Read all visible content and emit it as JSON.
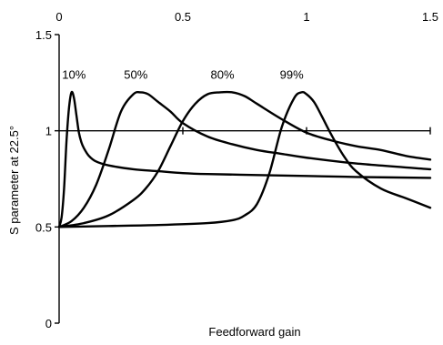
{
  "chart_data": {
    "type": "line",
    "title": "",
    "xlabel": "Feedforward gain",
    "ylabel": "S parameter at 22.5°",
    "xlim": [
      0,
      1.5
    ],
    "ylim": [
      0,
      1.5
    ],
    "x_ticks": [
      {
        "value": 0,
        "label": "0"
      },
      {
        "value": 0.5,
        "label": "0.5"
      },
      {
        "value": 1,
        "label": "1"
      },
      {
        "value": 1.5,
        "label": "1.5"
      }
    ],
    "y_ticks": [
      {
        "value": 0,
        "label": "0"
      },
      {
        "value": 0.5,
        "label": "0.5"
      },
      {
        "value": 1,
        "label": "1"
      },
      {
        "value": 1.5,
        "label": "1.5"
      }
    ],
    "x_axis_position": "top",
    "grid": false,
    "legend": "none",
    "reference_line": {
      "y": 1.0
    },
    "series": [
      {
        "name": "10%",
        "x": [
          0,
          0.01,
          0.02,
          0.03,
          0.04,
          0.05,
          0.06,
          0.07,
          0.08,
          0.09,
          0.1,
          0.12,
          0.15,
          0.2,
          0.3,
          0.4,
          0.5,
          0.6,
          0.8,
          1.0,
          1.2,
          1.5
        ],
        "y": [
          0.5,
          0.55,
          0.7,
          0.95,
          1.12,
          1.2,
          1.17,
          1.08,
          0.99,
          0.94,
          0.91,
          0.87,
          0.84,
          0.82,
          0.8,
          0.79,
          0.78,
          0.775,
          0.77,
          0.765,
          0.76,
          0.755
        ]
      },
      {
        "name": "50%",
        "x": [
          0,
          0.05,
          0.1,
          0.15,
          0.2,
          0.25,
          0.3,
          0.33,
          0.36,
          0.4,
          0.45,
          0.5,
          0.6,
          0.7,
          0.8,
          0.9,
          1.0,
          1.2,
          1.5
        ],
        "y": [
          0.5,
          0.53,
          0.6,
          0.72,
          0.9,
          1.1,
          1.19,
          1.2,
          1.19,
          1.15,
          1.1,
          1.04,
          0.97,
          0.93,
          0.9,
          0.88,
          0.86,
          0.83,
          0.8
        ]
      },
      {
        "name": "80%",
        "x": [
          0,
          0.1,
          0.2,
          0.3,
          0.35,
          0.4,
          0.45,
          0.5,
          0.55,
          0.6,
          0.65,
          0.7,
          0.75,
          0.8,
          0.9,
          1.0,
          1.1,
          1.2,
          1.3,
          1.4,
          1.5
        ],
        "y": [
          0.5,
          0.52,
          0.56,
          0.64,
          0.7,
          0.79,
          0.92,
          1.05,
          1.14,
          1.19,
          1.2,
          1.2,
          1.18,
          1.14,
          1.06,
          0.99,
          0.95,
          0.92,
          0.9,
          0.87,
          0.85
        ]
      },
      {
        "name": "99%",
        "x": [
          0,
          0.2,
          0.4,
          0.6,
          0.7,
          0.75,
          0.8,
          0.85,
          0.9,
          0.95,
          0.98,
          1.0,
          1.03,
          1.06,
          1.1,
          1.15,
          1.2,
          1.3,
          1.4,
          1.5
        ],
        "y": [
          0.5,
          0.505,
          0.51,
          0.52,
          0.535,
          0.56,
          0.62,
          0.78,
          1.02,
          1.17,
          1.2,
          1.19,
          1.15,
          1.08,
          0.98,
          0.87,
          0.79,
          0.7,
          0.65,
          0.6
        ]
      }
    ],
    "series_label_positions": [
      {
        "name": "10%",
        "x": 0.06,
        "y": 1.27
      },
      {
        "name": "50%",
        "x": 0.31,
        "y": 1.27
      },
      {
        "name": "80%",
        "x": 0.66,
        "y": 1.27
      },
      {
        "name": "99%",
        "x": 0.94,
        "y": 1.27
      }
    ]
  }
}
